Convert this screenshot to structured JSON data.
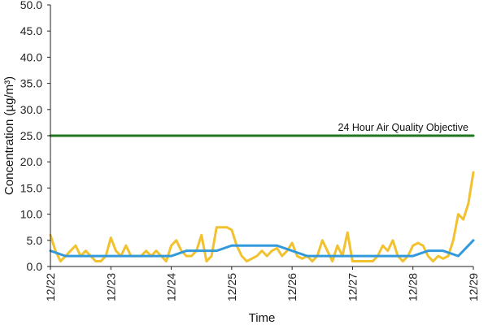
{
  "chart_data": {
    "type": "line",
    "title": "",
    "xlabel": "Time",
    "ylabel": "Concentration (µg/m³)",
    "ylim": [
      0,
      50
    ],
    "xlim": [
      "12/22",
      "12/29"
    ],
    "yticks": [
      "0.0",
      "5.0",
      "10.0",
      "15.0",
      "20.0",
      "25.0",
      "30.0",
      "35.0",
      "40.0",
      "45.0",
      "50.0"
    ],
    "xticks": [
      "12/22",
      "12/23",
      "12/24",
      "12/25",
      "12/26",
      "12/27",
      "12/28",
      "12/29"
    ],
    "grid": false,
    "legend": "none",
    "annotations": [
      {
        "text": "24 Hour Air Quality Objective"
      }
    ],
    "series": [
      {
        "color": "#1f7a1f",
        "x": [
          "12/22",
          "12/29"
        ],
        "values": [
          25.0,
          25.0
        ]
      },
      {
        "color": "#f2c12e",
        "x": [
          "12/22 00:00",
          "12/22 02:00",
          "12/22 04:00",
          "12/22 06:00",
          "12/22 08:00",
          "12/22 10:00",
          "12/22 12:00",
          "12/22 14:00",
          "12/22 16:00",
          "12/22 18:00",
          "12/22 20:00",
          "12/22 22:00",
          "12/23 00:00",
          "12/23 02:00",
          "12/23 04:00",
          "12/23 06:00",
          "12/23 08:00",
          "12/23 10:00",
          "12/23 12:00",
          "12/23 14:00",
          "12/23 16:00",
          "12/23 18:00",
          "12/23 20:00",
          "12/23 22:00",
          "12/24 00:00",
          "12/24 02:00",
          "12/24 04:00",
          "12/24 06:00",
          "12/24 08:00",
          "12/24 10:00",
          "12/24 12:00",
          "12/24 14:00",
          "12/24 16:00",
          "12/24 18:00",
          "12/24 20:00",
          "12/24 22:00",
          "12/25 00:00",
          "12/25 02:00",
          "12/25 04:00",
          "12/25 06:00",
          "12/25 08:00",
          "12/25 10:00",
          "12/25 12:00",
          "12/25 14:00",
          "12/25 16:00",
          "12/25 18:00",
          "12/25 20:00",
          "12/25 22:00",
          "12/26 00:00",
          "12/26 02:00",
          "12/26 04:00",
          "12/26 06:00",
          "12/26 08:00",
          "12/26 10:00",
          "12/26 12:00",
          "12/26 14:00",
          "12/26 16:00",
          "12/26 18:00",
          "12/26 20:00",
          "12/26 22:00",
          "12/27 00:00",
          "12/27 02:00",
          "12/27 04:00",
          "12/27 06:00",
          "12/27 08:00",
          "12/27 10:00",
          "12/27 12:00",
          "12/27 14:00",
          "12/27 16:00",
          "12/27 18:00",
          "12/27 20:00",
          "12/27 22:00",
          "12/28 00:00",
          "12/28 02:00",
          "12/28 04:00",
          "12/28 06:00",
          "12/28 08:00",
          "12/28 10:00",
          "12/28 12:00",
          "12/28 14:00",
          "12/28 16:00",
          "12/28 18:00",
          "12/28 20:00",
          "12/28 22:00",
          "12/29 00:00"
        ],
        "values": [
          6.0,
          3.0,
          1.0,
          2.0,
          3.0,
          4.0,
          2.0,
          3.0,
          2.0,
          1.0,
          1.0,
          2.0,
          5.5,
          3.0,
          2.0,
          4.0,
          2.0,
          2.0,
          2.0,
          3.0,
          2.0,
          3.0,
          2.0,
          1.0,
          4.0,
          5.0,
          3.0,
          2.0,
          2.0,
          3.0,
          6.0,
          1.0,
          2.0,
          7.5,
          7.5,
          7.5,
          7.0,
          4.0,
          2.0,
          1.0,
          1.5,
          2.0,
          3.0,
          2.0,
          3.0,
          3.5,
          2.0,
          3.0,
          4.5,
          2.0,
          1.5,
          2.0,
          1.0,
          2.0,
          5.0,
          3.0,
          1.0,
          4.0,
          2.0,
          6.5,
          1.0,
          1.0,
          1.0,
          1.0,
          1.0,
          2.0,
          4.0,
          3.0,
          5.0,
          2.0,
          1.0,
          2.0,
          4.0,
          4.5,
          4.0,
          2.0,
          1.0,
          2.0,
          1.5,
          2.0,
          5.0,
          10.0,
          9.0,
          12.0,
          18.0
        ]
      },
      {
        "color": "#3399dd",
        "x": [
          "12/22 00:00",
          "12/22 06:00",
          "12/22 12:00",
          "12/22 18:00",
          "12/23 00:00",
          "12/23 06:00",
          "12/23 12:00",
          "12/23 18:00",
          "12/24 00:00",
          "12/24 06:00",
          "12/24 12:00",
          "12/24 18:00",
          "12/25 00:00",
          "12/25 06:00",
          "12/25 12:00",
          "12/25 18:00",
          "12/26 00:00",
          "12/26 06:00",
          "12/26 12:00",
          "12/26 18:00",
          "12/27 00:00",
          "12/27 06:00",
          "12/27 12:00",
          "12/27 18:00",
          "12/28 00:00",
          "12/28 06:00",
          "12/28 12:00",
          "12/28 18:00",
          "12/29 00:00"
        ],
        "values": [
          3.0,
          2.0,
          2.0,
          2.0,
          2.0,
          2.0,
          2.0,
          2.0,
          2.0,
          3.0,
          3.0,
          3.0,
          4.0,
          4.0,
          4.0,
          4.0,
          3.0,
          2.0,
          2.0,
          2.0,
          2.0,
          2.0,
          2.0,
          2.0,
          2.0,
          3.0,
          3.0,
          2.0,
          5.0
        ]
      }
    ]
  }
}
